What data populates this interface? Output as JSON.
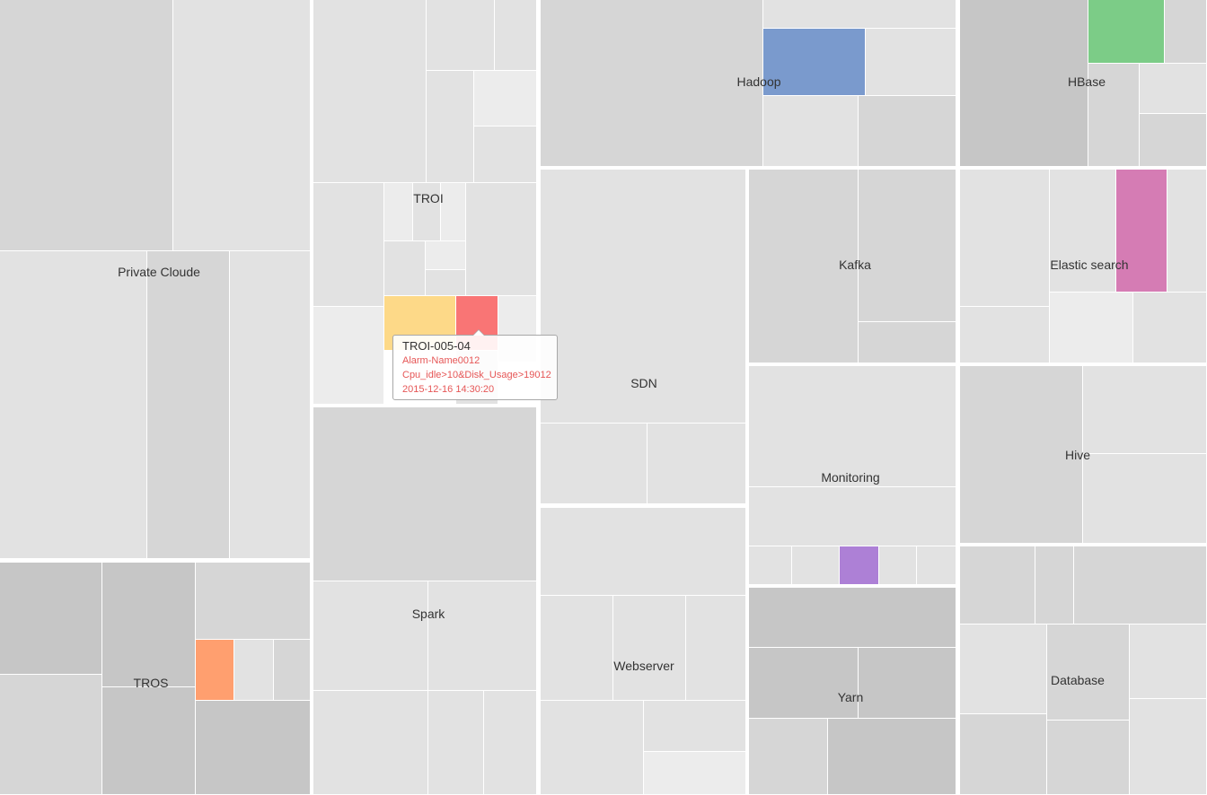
{
  "groups": [
    {
      "label": "Private Cloude"
    },
    {
      "label": "TROI"
    },
    {
      "label": "Hadoop"
    },
    {
      "label": "HBase"
    },
    {
      "label": "SDN"
    },
    {
      "label": "Kafka"
    },
    {
      "label": "Elastic search"
    },
    {
      "label": "Monitoring"
    },
    {
      "label": "Hive"
    },
    {
      "label": "Spark"
    },
    {
      "label": "TROS"
    },
    {
      "label": "Webserver"
    },
    {
      "label": "Yarn"
    },
    {
      "label": "Database"
    }
  ],
  "alarm_colors": {
    "yellow": "#fdd988",
    "red": "#f97575",
    "blue": "#7a9acd",
    "green": "#7ccc87",
    "pink": "#d57cb4",
    "purple": "#ad80d6",
    "orange": "#ff9f6f"
  },
  "tooltip": {
    "title": "TROI-005-04",
    "alarm_name": "Alarm-Name0012",
    "condition": "Cpu_idle>10&Disk_Usage>19012",
    "timestamp": "2015-12-16 14:30:20"
  }
}
